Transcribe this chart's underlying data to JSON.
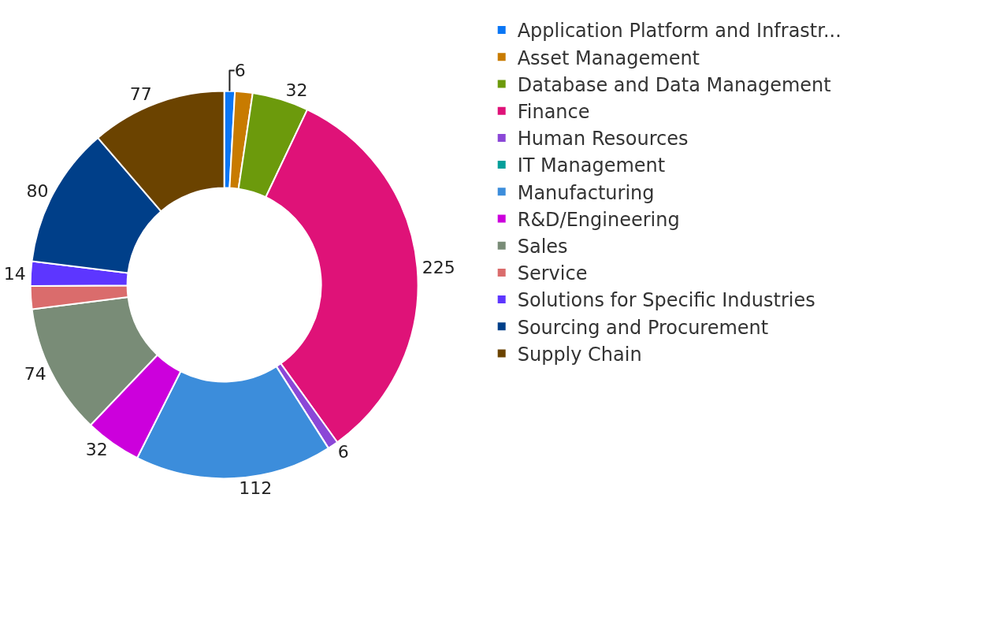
{
  "chart_data": {
    "type": "donut",
    "categories": [
      "Application Platform and Infrastr...",
      "Asset Management",
      "Database and Data Management",
      "Finance",
      "Human Resources",
      "IT Management",
      "Manufacturing",
      "R&D/Engineering",
      "Sales",
      "Service",
      "Solutions for Specific Industries",
      "Sourcing and Procurement",
      "Supply Chain"
    ],
    "values": [
      6,
      10,
      32,
      225,
      6,
      0,
      112,
      32,
      74,
      13,
      14,
      80,
      77
    ],
    "value_labels": [
      "6",
      null,
      "32",
      "225",
      "6",
      null,
      "112",
      "32",
      "74",
      null,
      "14",
      "80",
      "77"
    ],
    "colors": [
      "#0a76f5",
      "#c87b00",
      "#6c9a0c",
      "#df1278",
      "#8b47d7",
      "#049f9a",
      "#3c8ddb",
      "#cc00dc",
      "#798c77",
      "#da6c6c",
      "#5d36ff",
      "#003f89",
      "#6b4300"
    ],
    "legend": "right"
  }
}
